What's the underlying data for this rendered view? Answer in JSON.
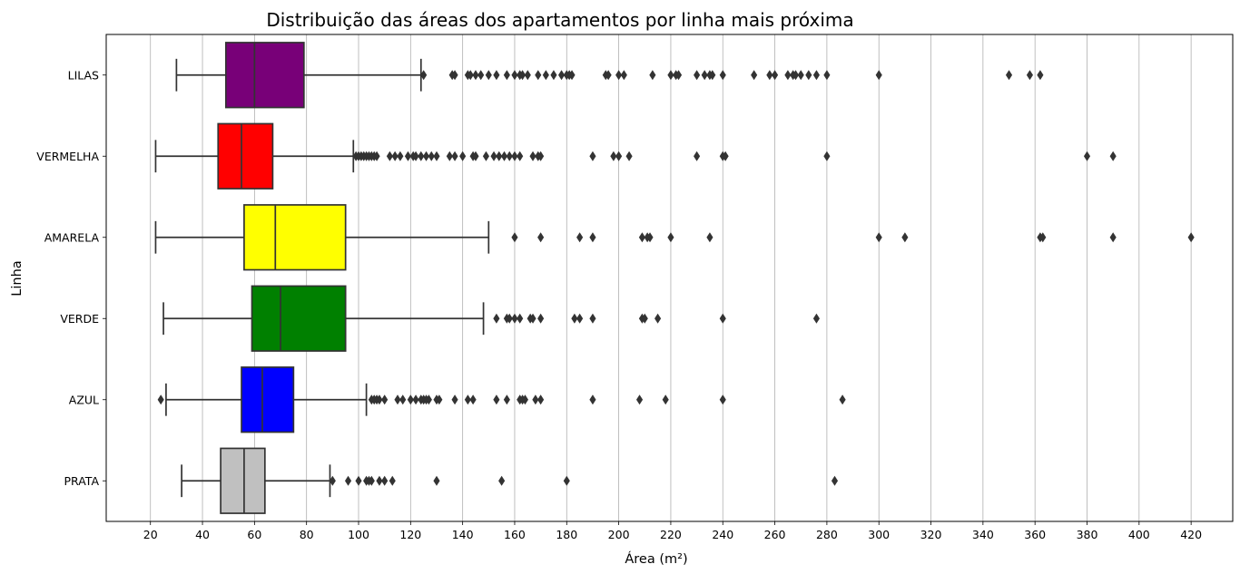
{
  "chart_data": {
    "type": "boxplot",
    "orientation": "horizontal",
    "title": "Distribuição das áreas dos apartamentos por linha mais próxima",
    "xlabel": "Área (m²)",
    "ylabel": "Linha",
    "xlim": [
      3,
      436
    ],
    "xticks": [
      20,
      40,
      60,
      80,
      100,
      120,
      140,
      160,
      180,
      200,
      220,
      240,
      260,
      280,
      300,
      320,
      340,
      360,
      380,
      400,
      420
    ],
    "grid": "vertical",
    "series": [
      {
        "name": "LILAS",
        "color": "#780078",
        "whisker_low": 30,
        "q1": 49,
        "median": 60,
        "q3": 79,
        "whisker_high": 124,
        "outliers": [
          125,
          136,
          137,
          142,
          143,
          145,
          147,
          150,
          153,
          157,
          160,
          162,
          163,
          165,
          169,
          172,
          175,
          178,
          180,
          181,
          182,
          195,
          196,
          200,
          202,
          213,
          220,
          222,
          223,
          230,
          233,
          235,
          236,
          240,
          252,
          258,
          260,
          265,
          267,
          268,
          270,
          273,
          276,
          280,
          300,
          350,
          358,
          362
        ]
      },
      {
        "name": "VERMELHA",
        "color": "#ff0000",
        "whisker_low": 22,
        "q1": 46,
        "median": 55,
        "q3": 67,
        "whisker_high": 98,
        "outliers": [
          99,
          100,
          101,
          102,
          103,
          104,
          105,
          106,
          107,
          112,
          114,
          116,
          119,
          121,
          122,
          124,
          126,
          128,
          130,
          135,
          137,
          140,
          144,
          145,
          149,
          152,
          154,
          156,
          158,
          160,
          162,
          167,
          169,
          170,
          190,
          198,
          200,
          204,
          230,
          240,
          241,
          280,
          380,
          390
        ]
      },
      {
        "name": "AMARELA",
        "color": "#ffff00",
        "whisker_low": 22,
        "q1": 56,
        "median": 68,
        "q3": 95,
        "whisker_high": 150,
        "outliers": [
          160,
          170,
          185,
          190,
          209,
          211,
          212,
          220,
          235,
          300,
          310,
          362,
          363,
          390,
          420
        ]
      },
      {
        "name": "VERDE",
        "color": "#008000",
        "whisker_low": 25,
        "q1": 59,
        "median": 70,
        "q3": 95,
        "whisker_high": 148,
        "outliers": [
          153,
          157,
          158,
          160,
          162,
          166,
          167,
          170,
          183,
          185,
          190,
          209,
          210,
          215,
          240,
          276
        ]
      },
      {
        "name": "AZUL",
        "color": "#0000ff",
        "whisker_low": 26,
        "q1": 55,
        "median": 63,
        "q3": 75,
        "whisker_high": 103,
        "outliers": [
          24,
          105,
          106,
          107,
          108,
          110,
          115,
          117,
          120,
          122,
          124,
          125,
          126,
          127,
          130,
          131,
          137,
          142,
          144,
          153,
          157,
          162,
          163,
          164,
          168,
          170,
          190,
          208,
          218,
          240,
          286
        ]
      },
      {
        "name": "PRATA",
        "color": "#c0c0c0",
        "whisker_low": 32,
        "q1": 47,
        "median": 56,
        "q3": 64,
        "whisker_high": 89,
        "outliers": [
          90,
          96,
          100,
          103,
          104,
          105,
          108,
          110,
          113,
          130,
          155,
          180,
          283
        ]
      }
    ]
  }
}
